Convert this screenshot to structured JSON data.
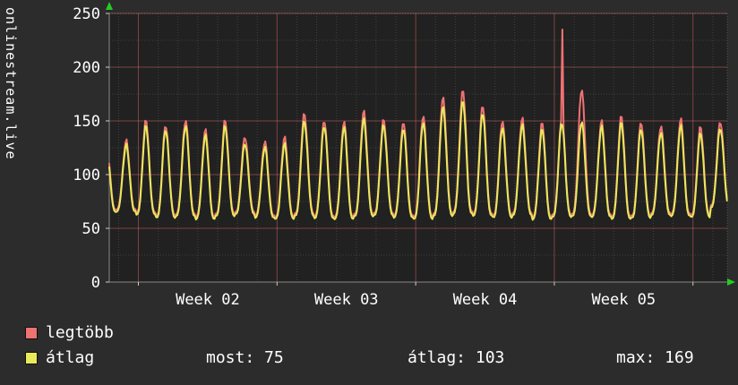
{
  "chart_data": {
    "type": "line",
    "vertical_label": "onlinestream.live",
    "ylim": [
      0,
      250
    ],
    "y_ticks": [
      0,
      50,
      100,
      150,
      200,
      250
    ],
    "y_minor_step": 25,
    "days": 31,
    "samples_per_day": 16,
    "view_start_day": -0.35,
    "view_end_day": 30.85,
    "week_boundaries_day": [
      1.12,
      8.12,
      15.12,
      22.12,
      29.12
    ],
    "week_labels": [
      "Week 02",
      "Week 03",
      "Week 04",
      "Week 05"
    ],
    "grid": true,
    "legend_position": "bottom-left",
    "colors": {
      "bg": "#2c2c2c",
      "plot_bg": "#212121",
      "grid_major": "rgba(235,110,110,0.45)",
      "grid_minor": "rgba(255,255,255,0.14)",
      "axis": "#888888",
      "tick": "#cccccc",
      "text": "#ffffff",
      "arrow": "#22cc22"
    },
    "series": [
      {
        "name": "legtöbb",
        "color": "#ee7272",
        "daily_peaks": [
          132,
          150,
          146,
          151,
          141,
          150,
          136,
          131,
          134,
          157,
          151,
          149,
          159,
          152,
          149,
          154,
          172,
          179,
          164,
          150,
          153,
          148,
          152,
          180,
          150,
          154,
          149,
          146,
          151,
          144,
          150
        ],
        "daily_troughs": [
          68,
          64,
          62,
          64,
          60,
          63,
          66,
          62,
          60,
          64,
          62,
          60,
          63,
          65,
          62,
          60,
          64,
          66,
          63,
          62,
          65,
          60,
          62,
          64,
          63,
          60,
          62,
          65,
          63,
          62,
          72
        ]
      },
      {
        "name": "átlag",
        "color": "#e9e95c",
        "daily_peaks": [
          128,
          145,
          142,
          146,
          136,
          145,
          130,
          126,
          128,
          150,
          146,
          144,
          152,
          147,
          143,
          148,
          163,
          169,
          157,
          144,
          147,
          142,
          148,
          150,
          145,
          148,
          143,
          140,
          145,
          138,
          144
        ],
        "daily_troughs": [
          66,
          62,
          60,
          62,
          58,
          61,
          64,
          60,
          58,
          62,
          60,
          58,
          61,
          63,
          60,
          58,
          62,
          64,
          61,
          60,
          63,
          58,
          60,
          62,
          61,
          58,
          60,
          63,
          61,
          60,
          70
        ]
      }
    ],
    "spike": {
      "series_index": 0,
      "day": 22,
      "value": 235
    }
  },
  "legend": {
    "items": [
      {
        "label": "legtöbb",
        "color": "#ee7272"
      },
      {
        "label": "átlag",
        "color": "#e9e95c"
      }
    ]
  },
  "stats": [
    {
      "name": "most",
      "text": "most: 75"
    },
    {
      "name": "atlag",
      "text": "átlag: 103"
    },
    {
      "name": "max",
      "text": "max: 169"
    }
  ]
}
